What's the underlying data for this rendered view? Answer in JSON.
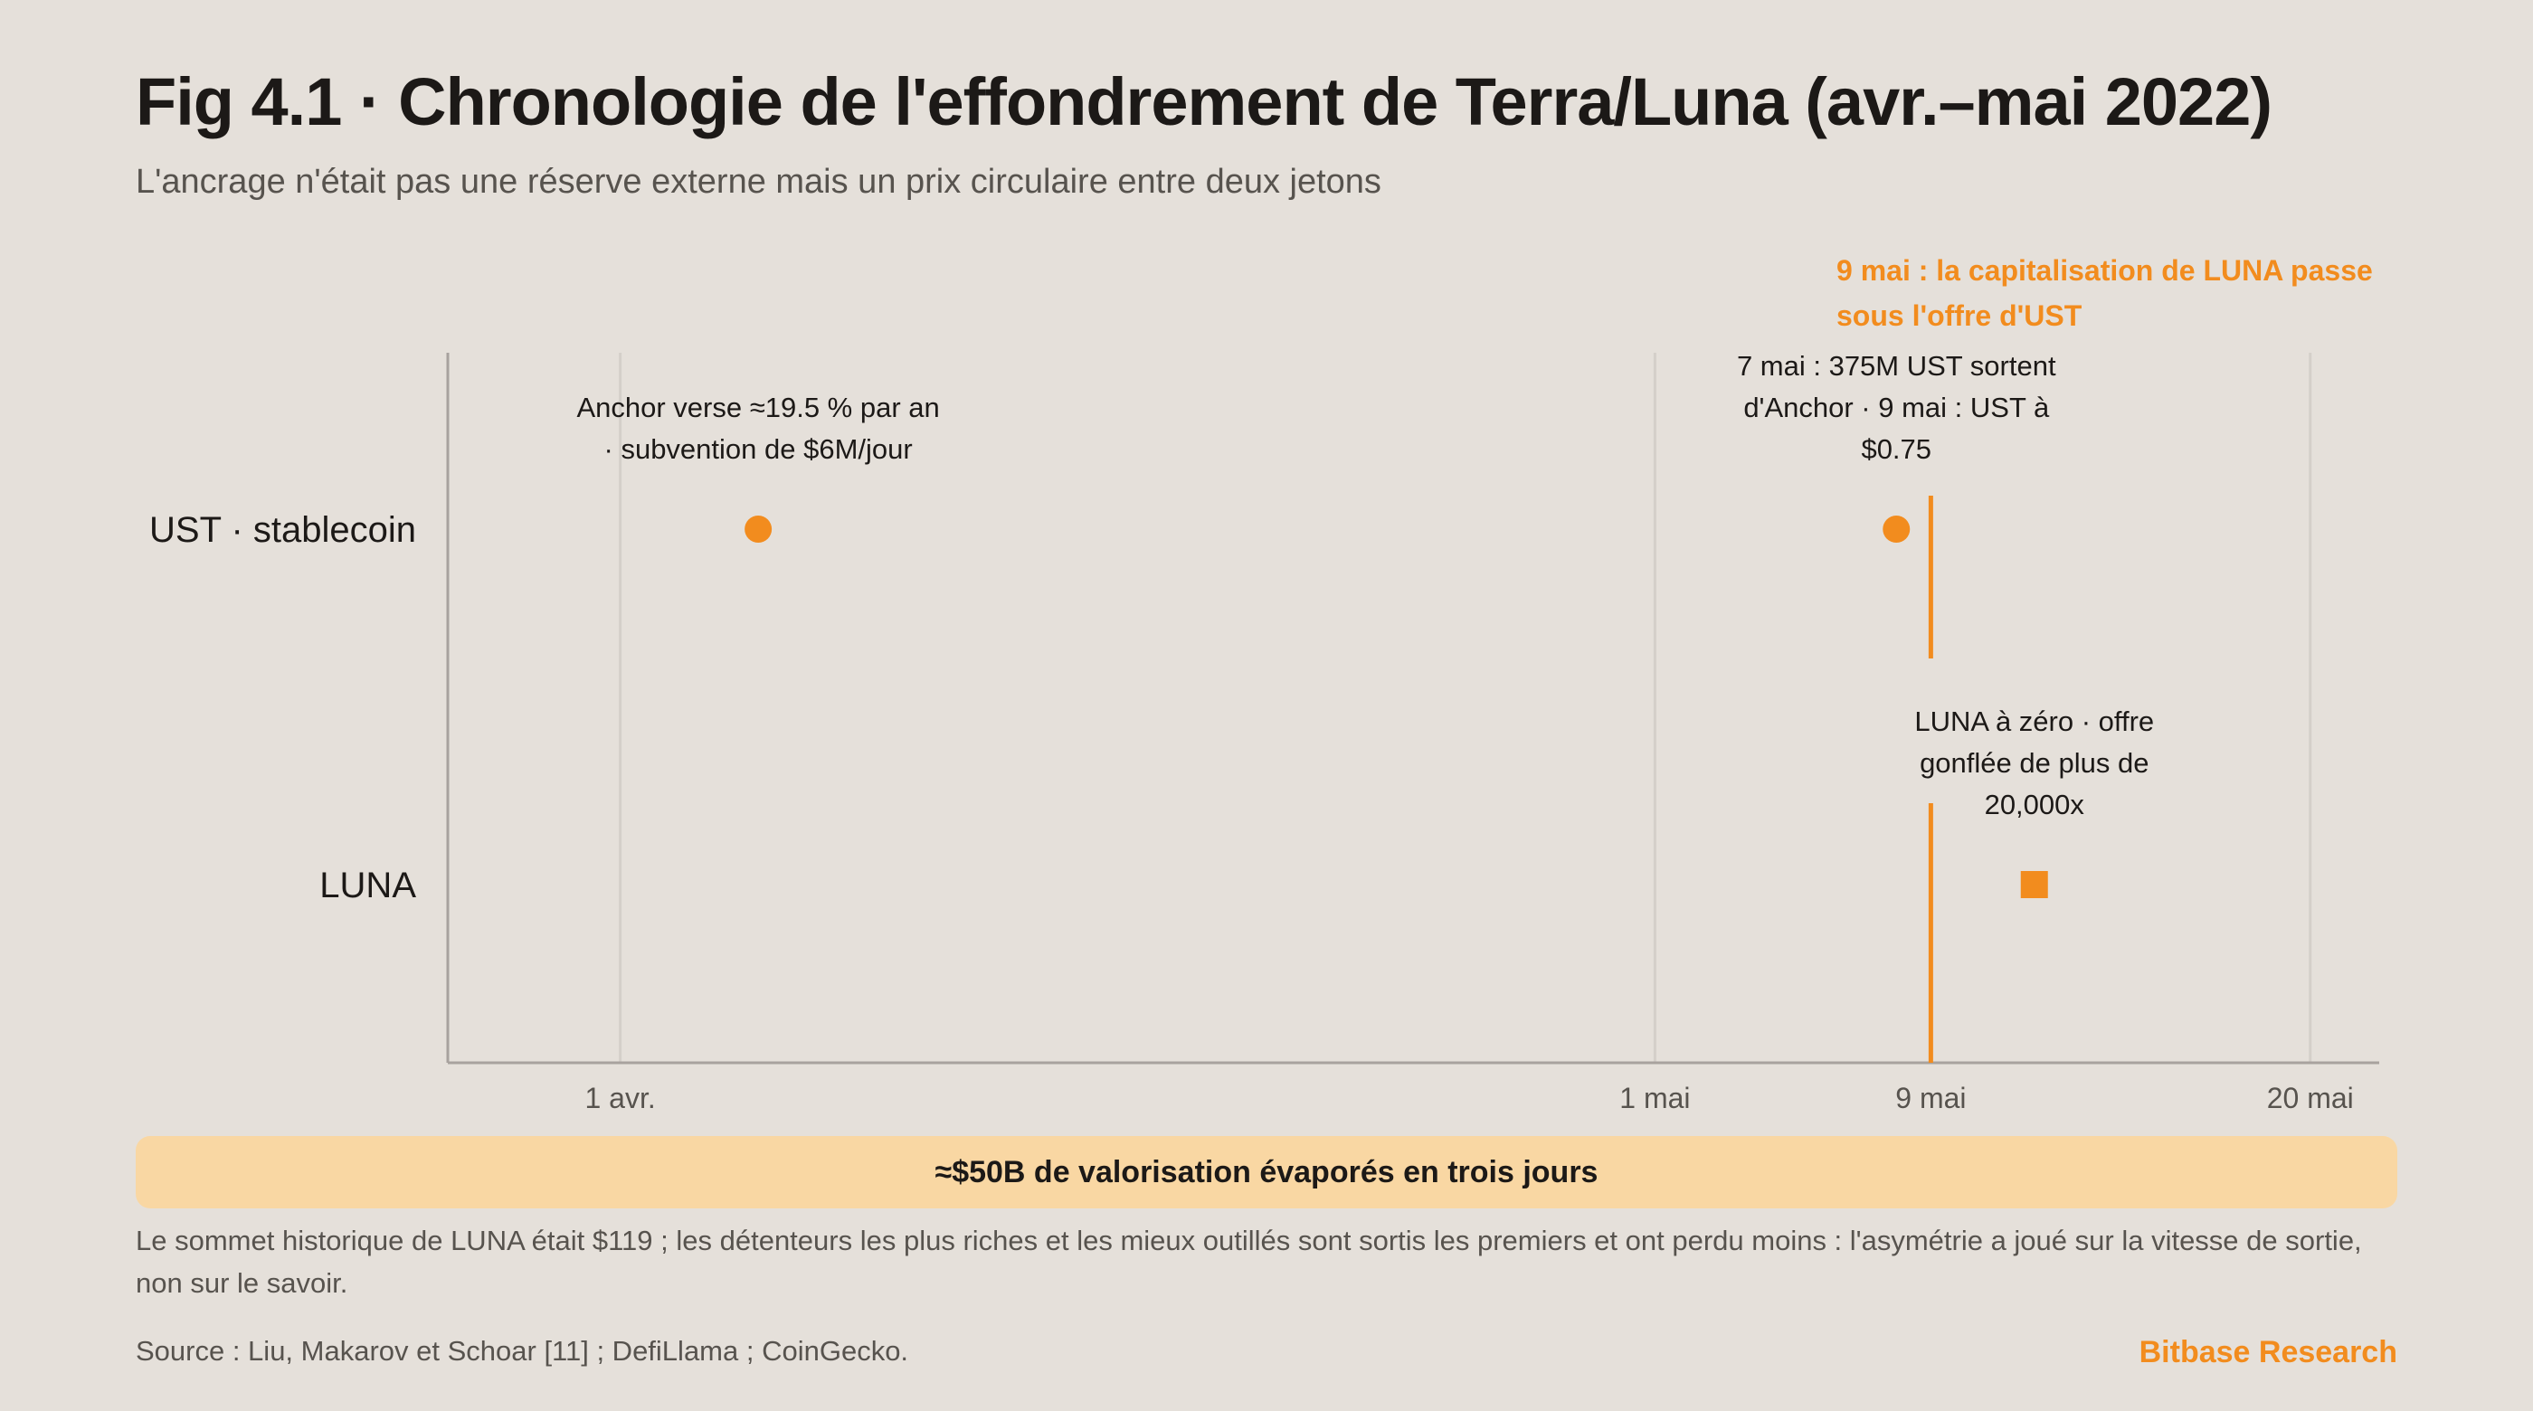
{
  "header": {
    "title": "Fig 4.1 · Chronologie de l'effondrement de Terra/Luna (avr.–mai 2022)",
    "subtitle": "L'ancrage n'était pas une réserve externe mais un prix circulaire entre deux jetons"
  },
  "colors": {
    "accent": "#f28c1e",
    "background": "#e5e0da",
    "banner": "#f9d7a3",
    "grid": "#d4cfc9",
    "axis": "#a8a29e"
  },
  "chart_data": {
    "type": "scatter",
    "x_axis": {
      "type": "date",
      "range": [
        "2022-03-27",
        "2022-05-22"
      ],
      "ticks": [
        {
          "date": "2022-04-01",
          "label": "1 avr."
        },
        {
          "date": "2022-05-01",
          "label": "1 mai"
        },
        {
          "date": "2022-05-09",
          "label": "9 mai"
        },
        {
          "date": "2022-05-20",
          "label": "20 mai"
        }
      ]
    },
    "y_categories": [
      "UST · stablecoin",
      "LUNA"
    ],
    "marker_line": {
      "date": "2022-05-09",
      "label": "9 mai : la capitalisation de LUNA passe sous l'offre d'UST"
    },
    "events": [
      {
        "category": "UST · stablecoin",
        "date": "2022-04-05",
        "marker": "circle",
        "label": "Anchor verse ≈19.5 % par an · subvention de $6M/jour"
      },
      {
        "category": "UST · stablecoin",
        "date": "2022-05-08",
        "marker": "circle",
        "label": "7 mai : 375M UST sortent d'Anchor · 9 mai : UST à $0.75"
      },
      {
        "category": "LUNA",
        "date": "2022-05-12",
        "marker": "square",
        "label": "LUNA à zéro · offre gonflée de plus de 20,000x"
      }
    ],
    "grid": true
  },
  "banner": {
    "text": "≈$50B de valorisation évaporés en trois jours"
  },
  "footer": {
    "note": "Le sommet historique de LUNA était $119 ; les détenteurs les plus riches et les mieux outillés sont sortis les premiers et ont perdu moins : l'asymétrie a joué sur la vitesse de sortie, non sur le savoir.",
    "source": "Source : Liu, Makarov et Schoar [11] ; DefiLlama ; CoinGecko.",
    "brand": "Bitbase Research"
  }
}
